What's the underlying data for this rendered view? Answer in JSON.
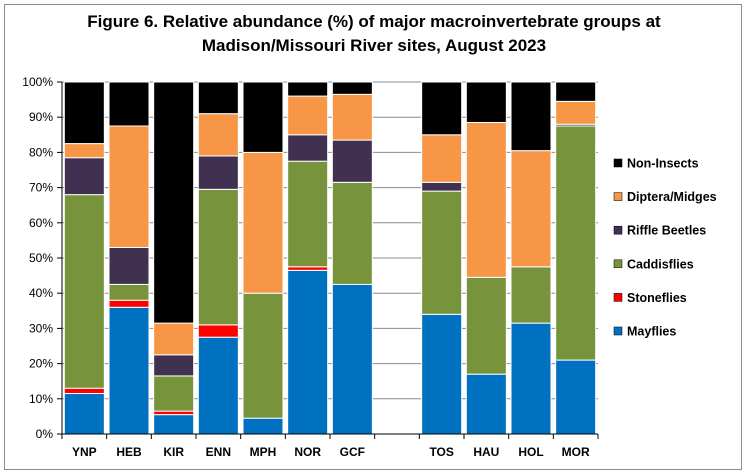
{
  "chart_data": {
    "type": "bar",
    "stacked": true,
    "title_line1": "Figure 6. Relative abundance (%) of major macroinvertebrate groups at",
    "title_line2": "Madison/Missouri River sites, August 2023",
    "categories": [
      "YNP",
      "HEB",
      "KIR",
      "ENN",
      "MPH",
      "NOR",
      "GCF",
      "",
      "TOS",
      "HAU",
      "HOL",
      "MOR"
    ],
    "ylim": [
      0,
      100
    ],
    "yticks": [
      0,
      10,
      20,
      30,
      40,
      50,
      60,
      70,
      80,
      90,
      100
    ],
    "ytick_labels": [
      "0%",
      "10%",
      "20%",
      "30%",
      "40%",
      "50%",
      "60%",
      "70%",
      "80%",
      "90%",
      "100%"
    ],
    "series": [
      {
        "name": "Mayflies",
        "color": "#0070c0",
        "values": [
          11.5,
          36,
          5.5,
          27.5,
          4.5,
          46.5,
          42.5,
          null,
          34,
          17,
          31.5,
          21
        ]
      },
      {
        "name": "Stoneflies",
        "color": "#ff0000",
        "values": [
          1.5,
          2,
          1,
          3.5,
          0,
          1,
          0,
          null,
          0,
          0,
          0,
          0
        ]
      },
      {
        "name": "Caddisflies",
        "color": "#77933c",
        "values": [
          55,
          4.5,
          10,
          38.5,
          35.5,
          30,
          29,
          null,
          35,
          27.5,
          16,
          66.5
        ]
      },
      {
        "name": "Riffle Beetles",
        "color": "#403151",
        "values": [
          10.5,
          10.5,
          6,
          9.5,
          0,
          7.5,
          12,
          null,
          2.5,
          0,
          0,
          0.5
        ]
      },
      {
        "name": "Diptera/Midges",
        "color": "#f79646",
        "values": [
          4,
          34.5,
          9,
          12,
          40,
          11,
          13,
          null,
          13.5,
          44,
          33,
          6.5
        ]
      },
      {
        "name": "Non-Insects",
        "color": "#000000",
        "values": [
          17.5,
          12.5,
          68.5,
          9,
          20,
          4,
          3.5,
          null,
          15,
          11.5,
          19.5,
          5.5
        ]
      }
    ],
    "legend": [
      "Non-Insects",
      "Diptera/Midges",
      "Riffle Beetles",
      "Caddisflies",
      "Stoneflies",
      "Mayflies"
    ],
    "legend_position": "right",
    "grid": true
  }
}
